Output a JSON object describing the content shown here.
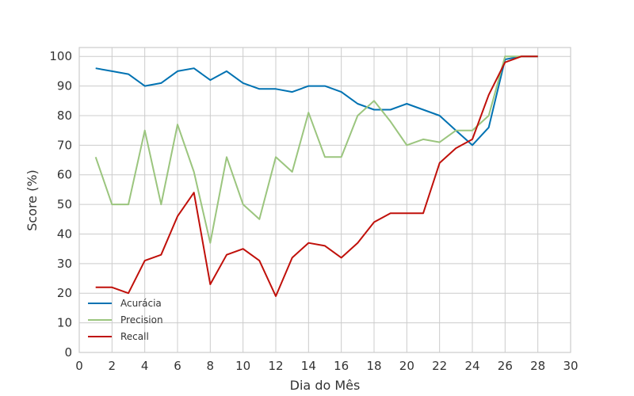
{
  "chart_data": {
    "type": "line",
    "xlabel": "Dia do Mês",
    "ylabel": "Score (%)",
    "xlim": [
      0,
      30
    ],
    "ylim": [
      0,
      103
    ],
    "xticks": [
      0,
      2,
      4,
      6,
      8,
      10,
      12,
      14,
      16,
      18,
      20,
      22,
      24,
      26,
      28,
      30
    ],
    "yticks": [
      0,
      10,
      20,
      30,
      40,
      50,
      60,
      70,
      80,
      90,
      100
    ],
    "grid": true,
    "legend_position": "lower-left",
    "x": [
      1,
      2,
      3,
      4,
      5,
      6,
      7,
      8,
      9,
      10,
      11,
      12,
      13,
      14,
      15,
      16,
      17,
      18,
      19,
      20,
      21,
      22,
      23,
      24,
      25,
      26,
      27,
      28
    ],
    "series": [
      {
        "name": "Acurácia",
        "color": "#0072B2",
        "values": [
          96,
          95,
          94,
          90,
          91,
          95,
          96,
          92,
          95,
          91,
          89,
          89,
          88,
          90,
          90,
          88,
          84,
          82,
          82,
          84,
          82,
          80,
          75,
          70,
          76,
          99,
          100,
          100
        ]
      },
      {
        "name": "Precision",
        "color": "#9BC57E",
        "values": [
          66,
          50,
          50,
          75,
          50,
          77,
          61,
          37,
          66,
          50,
          45,
          66,
          61,
          81,
          66,
          66,
          80,
          85,
          78,
          70,
          72,
          71,
          75,
          75,
          80,
          100,
          100,
          100
        ]
      },
      {
        "name": "Recall",
        "color": "#C0100A",
        "values": [
          22,
          22,
          20,
          31,
          33,
          46,
          54,
          23,
          33,
          35,
          31,
          19,
          32,
          37,
          36,
          32,
          37,
          44,
          47,
          47,
          47,
          64,
          69,
          72,
          87,
          98,
          100,
          100
        ]
      }
    ]
  }
}
